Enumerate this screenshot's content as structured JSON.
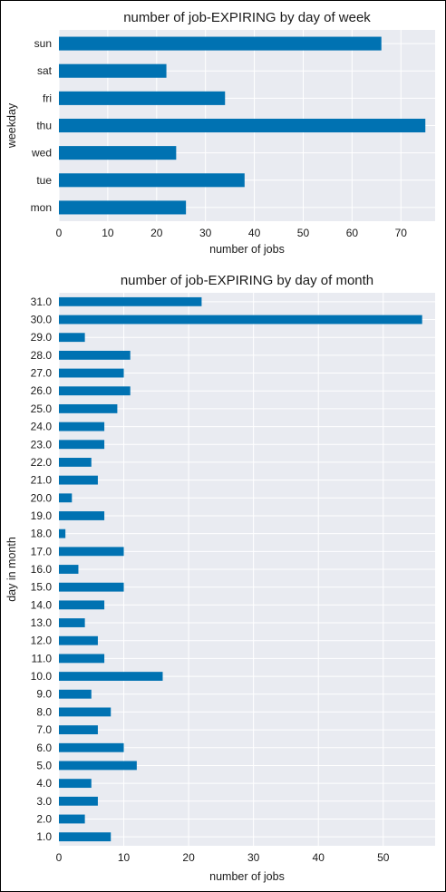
{
  "chart_data": [
    {
      "type": "bar",
      "orientation": "horizontal",
      "title": "number of job-EXPIRING by day of week",
      "xlabel": "number of jobs",
      "ylabel": "weekday",
      "categories": [
        "mon",
        "tue",
        "wed",
        "thu",
        "fri",
        "sat",
        "sun"
      ],
      "values": [
        26,
        38,
        24,
        75,
        34,
        22,
        66
      ],
      "xlim": [
        0,
        77
      ],
      "xticks": [
        0,
        10,
        20,
        30,
        40,
        50,
        60,
        70
      ],
      "grid": true,
      "bar_color": "#0072b2",
      "background_color": "#e9ebf1"
    },
    {
      "type": "bar",
      "orientation": "horizontal",
      "title": "number of job-EXPIRING by day of month",
      "xlabel": "number of jobs",
      "ylabel": "day in month",
      "categories": [
        "1.0",
        "2.0",
        "3.0",
        "4.0",
        "5.0",
        "6.0",
        "7.0",
        "8.0",
        "9.0",
        "10.0",
        "11.0",
        "12.0",
        "13.0",
        "14.0",
        "15.0",
        "16.0",
        "17.0",
        "18.0",
        "19.0",
        "20.0",
        "21.0",
        "22.0",
        "23.0",
        "24.0",
        "25.0",
        "26.0",
        "27.0",
        "28.0",
        "29.0",
        "30.0",
        "31.0"
      ],
      "values": [
        8,
        4,
        6,
        5,
        12,
        10,
        6,
        8,
        5,
        16,
        7,
        6,
        4,
        7,
        10,
        3,
        10,
        1,
        7,
        2,
        6,
        5,
        7,
        7,
        9,
        11,
        10,
        11,
        4,
        56,
        22
      ],
      "xlim": [
        0,
        58
      ],
      "xticks": [
        0,
        10,
        20,
        30,
        40,
        50
      ],
      "grid": true,
      "bar_color": "#0072b2",
      "background_color": "#e9ebf1"
    }
  ]
}
